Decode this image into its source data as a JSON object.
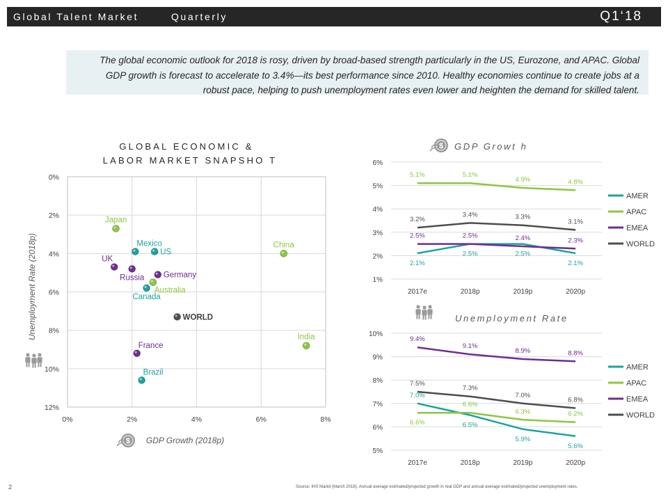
{
  "header": {
    "title": "Global Talent Market",
    "subtitle": "Quarterly",
    "period": "Q1‘18"
  },
  "summary": {
    "text": "The global economic outlook for 2018 is rosy, driven by broad-based strength particularly in the US, Eurozone, and APAC. Global GDP growth is forecast to accelerate to 3.4%—its best performance since 2010. Healthy economies continue to create jobs at a robust pace, helping to push unemployment rates even lower and heighten the demand for skilled talent."
  },
  "page_number": "2",
  "footnote": "Source: IHS Markit (March 2018). Annual average estimated/projected growth in real GDP and annual average estimated/projected unemployment rates.",
  "colors": {
    "amer": "#1aa3a0",
    "apac": "#8cc63f",
    "emea": "#6f2c91",
    "world": "#4d4d4d",
    "grid": "#d9d9d9",
    "header_bg": "#262626",
    "summary_bg": "#e7f0f2"
  },
  "icons": {
    "gdp": "dollar-coin-icon",
    "unemployment": "people-icon"
  },
  "chart_data": [
    {
      "id": "snapshot",
      "type": "scatter",
      "title_line1": "GLOBAL ECONOMIC  &",
      "title_line2": "LABOR MARKET SNAPSHO T",
      "xlabel": "GDP Growth (2018p)",
      "ylabel": "Unemployment Rate (2018p)",
      "xlim": [
        0,
        8
      ],
      "ylim": [
        0,
        12
      ],
      "y_inverted": true,
      "x_ticks": [
        "0%",
        "2%",
        "4%",
        "6%",
        "8%"
      ],
      "y_ticks": [
        "0%",
        "2%",
        "4%",
        "6%",
        "8%",
        "10%",
        "12%"
      ],
      "points": [
        {
          "label": "Japan",
          "x": 1.5,
          "y": 2.7,
          "region": "apac",
          "label_pos": "above"
        },
        {
          "label": "Mexico",
          "x": 2.1,
          "y": 3.9,
          "region": "amer",
          "label_pos": "above-right"
        },
        {
          "label": "US",
          "x": 2.7,
          "y": 3.9,
          "region": "amer",
          "label_pos": "right"
        },
        {
          "label": "China",
          "x": 6.7,
          "y": 4.0,
          "region": "apac",
          "label_pos": "above"
        },
        {
          "label": "UK",
          "x": 1.45,
          "y": 4.7,
          "region": "emea",
          "label_pos": "above-left"
        },
        {
          "label": "Russia",
          "x": 2.0,
          "y": 4.8,
          "region": "emea",
          "label_pos": "below"
        },
        {
          "label": "Germany",
          "x": 2.8,
          "y": 5.1,
          "region": "emea",
          "label_pos": "right"
        },
        {
          "label": "Australia",
          "x": 2.65,
          "y": 5.5,
          "region": "apac",
          "label_pos": "below-right"
        },
        {
          "label": "Canada",
          "x": 2.45,
          "y": 5.8,
          "region": "amer",
          "label_pos": "below"
        },
        {
          "label": "WORLD",
          "x": 3.4,
          "y": 7.3,
          "region": "world",
          "label_pos": "right"
        },
        {
          "label": "India",
          "x": 7.4,
          "y": 8.8,
          "region": "apac",
          "label_pos": "above"
        },
        {
          "label": "France",
          "x": 2.15,
          "y": 9.2,
          "region": "emea",
          "label_pos": "above-right"
        },
        {
          "label": "Brazil",
          "x": 2.3,
          "y": 10.6,
          "region": "amer",
          "label_pos": "above-right"
        }
      ]
    },
    {
      "id": "gdp",
      "type": "line",
      "title": "GDP Growt h",
      "categories": [
        "2017e",
        "2018p",
        "2019p",
        "2020p"
      ],
      "ylim": [
        1,
        6
      ],
      "y_ticks": [
        "1%",
        "2%",
        "3%",
        "4%",
        "5%",
        "6%"
      ],
      "series": [
        {
          "name": "AMER",
          "key": "amer",
          "values": [
            2.1,
            2.5,
            2.5,
            2.1
          ],
          "labels": [
            "2.1%",
            "2.5%",
            "2.5%",
            "2.1%"
          ],
          "label_pos": [
            "below",
            "below",
            "below",
            "below"
          ]
        },
        {
          "name": "APAC",
          "key": "apac",
          "values": [
            5.1,
            5.1,
            4.9,
            4.8
          ],
          "labels": [
            "5.1%",
            "5.1%",
            "4.9%",
            "4.8%"
          ],
          "label_pos": [
            "above",
            "above",
            "above",
            "above"
          ]
        },
        {
          "name": "EMEA",
          "key": "emea",
          "values": [
            2.5,
            2.5,
            2.4,
            2.3
          ],
          "labels": [
            "2.5%",
            "2.5%",
            "2.4%",
            "2.3%"
          ],
          "label_pos": [
            "above",
            "above",
            "above",
            "above"
          ]
        },
        {
          "name": "WORLD",
          "key": "world",
          "values": [
            3.2,
            3.4,
            3.3,
            3.1
          ],
          "labels": [
            "3.2%",
            "3.4%",
            "3.3%",
            "3.1%"
          ],
          "label_pos": [
            "above",
            "above",
            "above",
            "above"
          ]
        }
      ]
    },
    {
      "id": "unemployment",
      "type": "line",
      "title": "Unemployment  Rate",
      "categories": [
        "2017e",
        "2018p",
        "2019p",
        "2020p"
      ],
      "ylim": [
        5,
        10
      ],
      "y_ticks": [
        "5%",
        "6%",
        "7%",
        "8%",
        "9%",
        "10%"
      ],
      "series": [
        {
          "name": "AMER",
          "key": "amer",
          "values": [
            7.0,
            6.5,
            5.9,
            5.6
          ],
          "labels": [
            "7.0%",
            "6.5%",
            "5.9%",
            "5.6%"
          ],
          "label_pos": [
            "above",
            "below",
            "below",
            "below"
          ]
        },
        {
          "name": "APAC",
          "key": "apac",
          "values": [
            6.6,
            6.6,
            6.3,
            6.2
          ],
          "labels": [
            "6.6%",
            "6.6%",
            "6.3%",
            "6.2%"
          ],
          "label_pos": [
            "below",
            "above",
            "above",
            "above"
          ]
        },
        {
          "name": "EMEA",
          "key": "emea",
          "values": [
            9.4,
            9.1,
            8.9,
            8.8
          ],
          "labels": [
            "9.4%",
            "9.1%",
            "8.9%",
            "8.8%"
          ],
          "label_pos": [
            "above",
            "above",
            "above",
            "above"
          ]
        },
        {
          "name": "WORLD",
          "key": "world",
          "values": [
            7.5,
            7.3,
            7.0,
            6.8
          ],
          "labels": [
            "7.5%",
            "7.3%",
            "7.0%",
            "6.8%"
          ],
          "label_pos": [
            "above",
            "above",
            "above",
            "above"
          ]
        }
      ]
    }
  ]
}
